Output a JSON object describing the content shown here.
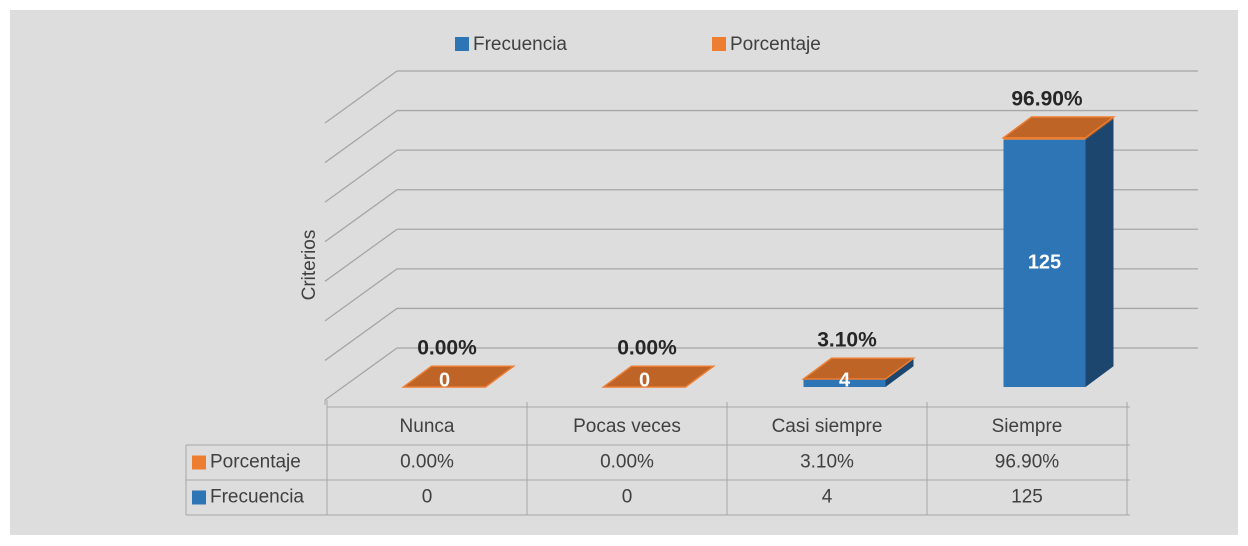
{
  "chart_data": {
    "type": "bar3d_stacked",
    "y_axis_label": "Criterios",
    "categories": [
      "Nunca",
      "Pocas veces",
      "Casi siempre",
      "Siempre"
    ],
    "series": [
      {
        "name": "Frecuencia",
        "color": "#2e75b6",
        "values": [
          0,
          0,
          4,
          125
        ]
      },
      {
        "name": "Porcentaje",
        "color": "#ed7d31",
        "values": [
          0,
          0,
          0.031,
          0.969
        ],
        "value_labels": [
          "0.00%",
          "0.00%",
          "3.10%",
          "96.90%"
        ]
      }
    ],
    "ylim": [
      0,
      140
    ],
    "yticks": [
      0,
      20,
      40,
      60,
      80,
      100,
      120,
      140
    ],
    "grid": true
  }
}
